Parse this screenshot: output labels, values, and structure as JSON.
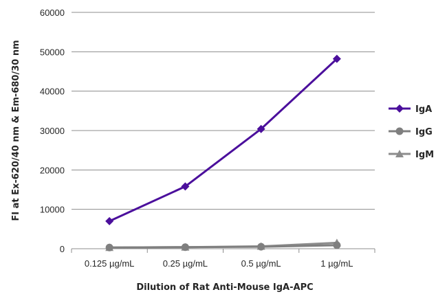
{
  "chart_data": {
    "type": "line",
    "categories": [
      "0.125 µg/mL",
      "0.25 µg/mL",
      "0.5 µg/mL",
      "1 µg/mL"
    ],
    "series": [
      {
        "name": "IgA",
        "values": [
          7000,
          15800,
          30400,
          48200
        ],
        "color": "#4b0f9c",
        "marker": "diamond"
      },
      {
        "name": "IgG",
        "values": [
          300,
          400,
          500,
          900
        ],
        "color": "#7f7f7f",
        "marker": "circle"
      },
      {
        "name": "IgM",
        "values": [
          300,
          400,
          600,
          1500
        ],
        "color": "#8c8c8c",
        "marker": "triangle"
      }
    ],
    "xlabel": "Dilution of Rat Anti-Mouse IgA-APC",
    "ylabel": "FI at Ex-620/40 nm & Em-680/30 nm",
    "ylim": [
      0,
      60000
    ],
    "yticks": [
      0,
      10000,
      20000,
      30000,
      40000,
      50000,
      60000
    ],
    "grid": "horizontal",
    "legend_position": "right"
  }
}
